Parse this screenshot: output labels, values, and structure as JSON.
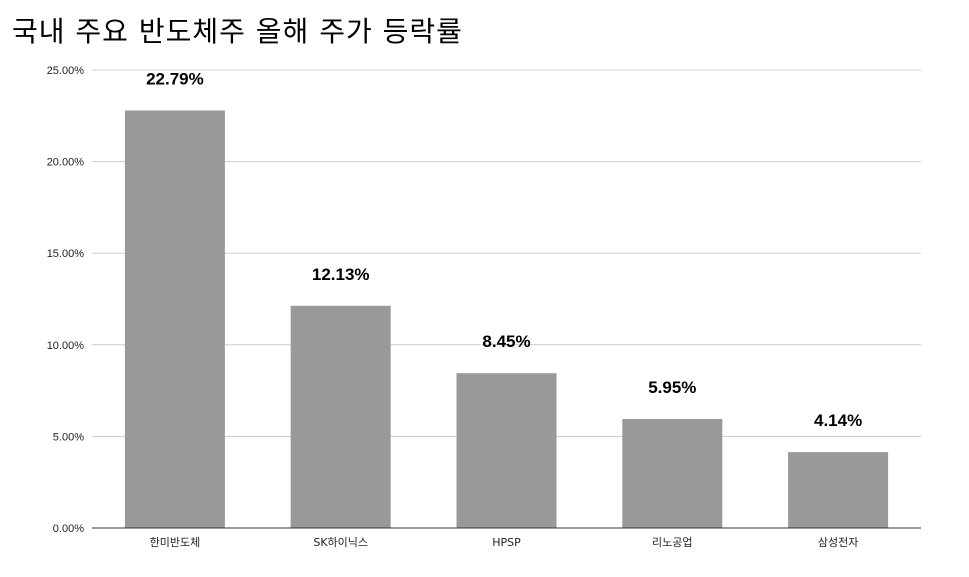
{
  "chart_data": {
    "type": "bar",
    "title": "국내 주요 반도체주 올해 주가 등락률",
    "xlabel": "",
    "ylabel": "",
    "categories": [
      "한미반도체",
      "SK하이닉스",
      "HPSP",
      "리노공업",
      "삼성전자"
    ],
    "values": [
      22.79,
      12.13,
      8.45,
      5.95,
      4.14
    ],
    "data_labels": [
      "22.79%",
      "12.13%",
      "8.45%",
      "5.95%",
      "4.14%"
    ],
    "ylim": [
      0,
      25
    ],
    "yticks": [
      0,
      5,
      10,
      15,
      20,
      25
    ],
    "ytick_labels": [
      "0.00%",
      "5.00%",
      "10.00%",
      "15.00%",
      "20.00%",
      "25.00%"
    ],
    "grid": true,
    "legend": "none",
    "bar_color": "#999999",
    "grid_color": "#cccccc",
    "axis_color": "#333333"
  }
}
